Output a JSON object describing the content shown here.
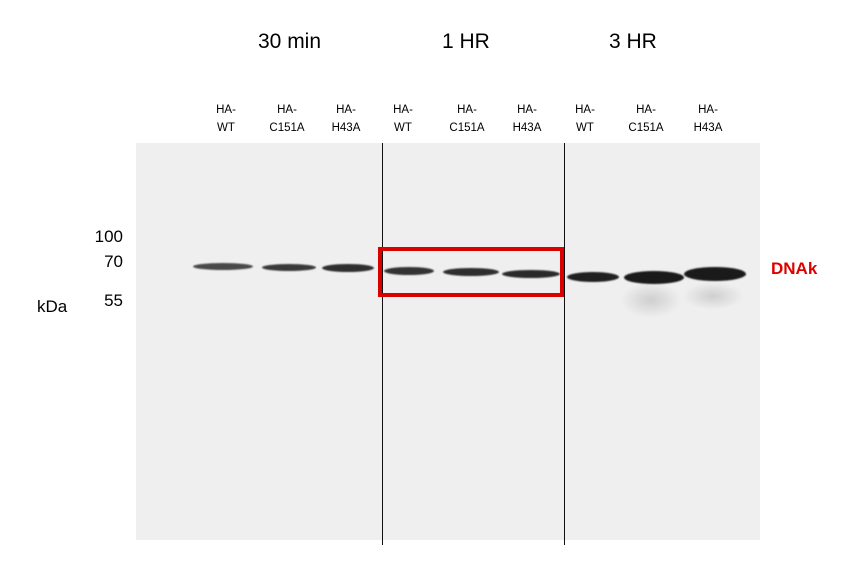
{
  "groups": [
    {
      "label": "30 min"
    },
    {
      "label": "1 HR"
    },
    {
      "label": "3 HR"
    }
  ],
  "lanes": [
    {
      "label": "HA-\nWT",
      "band_intensity": 0.75
    },
    {
      "label": "HA-\nC151A",
      "band_intensity": 0.8
    },
    {
      "label": "HA-\nH43A",
      "band_intensity": 0.85
    },
    {
      "label": "HA-\nWT",
      "band_intensity": 0.85
    },
    {
      "label": "HA-\nC151A",
      "band_intensity": 0.85
    },
    {
      "label": "HA-\nH43A",
      "band_intensity": 0.9
    },
    {
      "label": "HA-\nWT",
      "band_intensity": 0.95
    },
    {
      "label": "HA-\nC151A",
      "band_intensity": 1.0
    },
    {
      "label": "HA-\nH43A",
      "band_intensity": 1.0
    }
  ],
  "markers": {
    "values": [
      "100",
      "70",
      "55"
    ],
    "unit": "kDa"
  },
  "protein": {
    "label": "DNAk",
    "color": "#e00000"
  },
  "highlight": {
    "color": "#d90000",
    "group": "1 HR"
  }
}
